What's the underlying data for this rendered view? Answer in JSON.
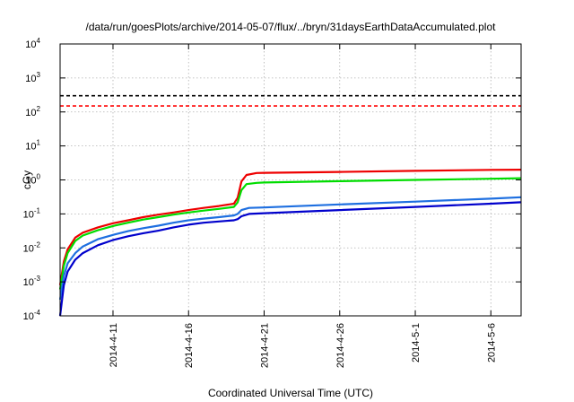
{
  "chart_data": {
    "type": "line",
    "title": "/data/run/goesPlots/archive/2014-05-07/flux/../bryn/31daysEarthDataAccumulated.plot",
    "xlabel": "Coordinated Universal Time (UTC)",
    "ylabel": "cGy",
    "yscale": "log",
    "ylim": [
      0.0001,
      10000
    ],
    "y_ticks": [
      {
        "value": 0.0001,
        "base": "10",
        "exp": "-4"
      },
      {
        "value": 0.001,
        "base": "10",
        "exp": "-3"
      },
      {
        "value": 0.01,
        "base": "10",
        "exp": "-2"
      },
      {
        "value": 0.1,
        "base": "10",
        "exp": "-1"
      },
      {
        "value": 1,
        "base": "10",
        "exp": "0"
      },
      {
        "value": 10,
        "base": "10",
        "exp": "1"
      },
      {
        "value": 100,
        "base": "10",
        "exp": "2"
      },
      {
        "value": 1000,
        "base": "10",
        "exp": "3"
      },
      {
        "value": 10000,
        "base": "10",
        "exp": "4"
      }
    ],
    "xlim": [
      "2014-04-07T12:00",
      "2014-05-08T00:00"
    ],
    "x_ticks": [
      {
        "value": "2014-04-11T00:00",
        "label": "2014-4-11"
      },
      {
        "value": "2014-04-16T00:00",
        "label": "2014-4-16"
      },
      {
        "value": "2014-04-21T00:00",
        "label": "2014-4-21"
      },
      {
        "value": "2014-04-26T00:00",
        "label": "2014-4-26"
      },
      {
        "value": "2014-05-01T00:00",
        "label": "2014-5-1"
      },
      {
        "value": "2014-05-06T00:00",
        "label": "2014-5-6"
      }
    ],
    "grid": true,
    "reference_lines": [
      {
        "y": 300,
        "color": "#000000",
        "style": "dashed"
      },
      {
        "y": 150,
        "color": "#ff0000",
        "style": "dashed"
      }
    ],
    "series": [
      {
        "color": "#ee0000",
        "points": [
          [
            "2014-04-07T12:00",
            0.0008
          ],
          [
            "2014-04-07T18:00",
            0.004
          ],
          [
            "2014-04-08T00:00",
            0.009
          ],
          [
            "2014-04-08T12:00",
            0.02
          ],
          [
            "2014-04-09T00:00",
            0.028
          ],
          [
            "2014-04-10T00:00",
            0.04
          ],
          [
            "2014-04-11T00:00",
            0.053
          ],
          [
            "2014-04-12T00:00",
            0.065
          ],
          [
            "2014-04-13T00:00",
            0.08
          ],
          [
            "2014-04-14T00:00",
            0.095
          ],
          [
            "2014-04-15T00:00",
            0.11
          ],
          [
            "2014-04-16T00:00",
            0.13
          ],
          [
            "2014-04-17T00:00",
            0.15
          ],
          [
            "2014-04-18T00:00",
            0.17
          ],
          [
            "2014-04-19T00:00",
            0.2
          ],
          [
            "2014-04-19T06:00",
            0.3
          ],
          [
            "2014-04-19T12:00",
            0.9
          ],
          [
            "2014-04-19T20:00",
            1.4
          ],
          [
            "2014-04-20T12:00",
            1.6
          ],
          [
            "2014-04-21T00:00",
            1.62
          ],
          [
            "2014-04-26T00:00",
            1.72
          ],
          [
            "2014-05-01T00:00",
            1.85
          ],
          [
            "2014-05-06T00:00",
            1.97
          ],
          [
            "2014-05-08T00:00",
            2.0
          ]
        ]
      },
      {
        "color": "#00dd00",
        "points": [
          [
            "2014-04-07T12:00",
            0.0006
          ],
          [
            "2014-04-07T18:00",
            0.003
          ],
          [
            "2014-04-08T00:00",
            0.007
          ],
          [
            "2014-04-08T12:00",
            0.016
          ],
          [
            "2014-04-09T00:00",
            0.023
          ],
          [
            "2014-04-10T00:00",
            0.033
          ],
          [
            "2014-04-11T00:00",
            0.044
          ],
          [
            "2014-04-12T00:00",
            0.055
          ],
          [
            "2014-04-13T00:00",
            0.068
          ],
          [
            "2014-04-14T00:00",
            0.08
          ],
          [
            "2014-04-15T00:00",
            0.095
          ],
          [
            "2014-04-16T00:00",
            0.11
          ],
          [
            "2014-04-17T00:00",
            0.125
          ],
          [
            "2014-04-18T00:00",
            0.14
          ],
          [
            "2014-04-19T00:00",
            0.16
          ],
          [
            "2014-04-19T06:00",
            0.22
          ],
          [
            "2014-04-19T12:00",
            0.5
          ],
          [
            "2014-04-19T20:00",
            0.75
          ],
          [
            "2014-04-20T12:00",
            0.82
          ],
          [
            "2014-04-21T00:00",
            0.84
          ],
          [
            "2014-04-26T00:00",
            0.92
          ],
          [
            "2014-05-01T00:00",
            1.0
          ],
          [
            "2014-05-06T00:00",
            1.08
          ],
          [
            "2014-05-08T00:00",
            1.12
          ]
        ]
      },
      {
        "color": "#1e6fe0",
        "points": [
          [
            "2014-04-07T12:00",
            0.0003
          ],
          [
            "2014-04-07T18:00",
            0.0015
          ],
          [
            "2014-04-08T00:00",
            0.0035
          ],
          [
            "2014-04-08T12:00",
            0.007
          ],
          [
            "2014-04-09T00:00",
            0.011
          ],
          [
            "2014-04-10T00:00",
            0.018
          ],
          [
            "2014-04-11T00:00",
            0.024
          ],
          [
            "2014-04-12T00:00",
            0.031
          ],
          [
            "2014-04-13T00:00",
            0.038
          ],
          [
            "2014-04-14T00:00",
            0.045
          ],
          [
            "2014-04-15T00:00",
            0.055
          ],
          [
            "2014-04-16T00:00",
            0.065
          ],
          [
            "2014-04-17T00:00",
            0.073
          ],
          [
            "2014-04-18T00:00",
            0.08
          ],
          [
            "2014-04-19T00:00",
            0.09
          ],
          [
            "2014-04-19T06:00",
            0.1
          ],
          [
            "2014-04-19T12:00",
            0.13
          ],
          [
            "2014-04-20T00:00",
            0.15
          ],
          [
            "2014-04-21T00:00",
            0.155
          ],
          [
            "2014-04-26T00:00",
            0.19
          ],
          [
            "2014-05-01T00:00",
            0.23
          ],
          [
            "2014-05-06T00:00",
            0.28
          ],
          [
            "2014-05-08T00:00",
            0.31
          ]
        ]
      },
      {
        "color": "#0000cc",
        "points": [
          [
            "2014-04-07T12:00",
            0.0001
          ],
          [
            "2014-04-07T18:00",
            0.0008
          ],
          [
            "2014-04-08T00:00",
            0.002
          ],
          [
            "2014-04-08T12:00",
            0.0045
          ],
          [
            "2014-04-09T00:00",
            0.007
          ],
          [
            "2014-04-10T00:00",
            0.012
          ],
          [
            "2014-04-11T00:00",
            0.017
          ],
          [
            "2014-04-12T00:00",
            0.022
          ],
          [
            "2014-04-13T00:00",
            0.027
          ],
          [
            "2014-04-14T00:00",
            0.032
          ],
          [
            "2014-04-15T00:00",
            0.04
          ],
          [
            "2014-04-16T00:00",
            0.048
          ],
          [
            "2014-04-17T00:00",
            0.055
          ],
          [
            "2014-04-18T00:00",
            0.06
          ],
          [
            "2014-04-19T00:00",
            0.065
          ],
          [
            "2014-04-19T06:00",
            0.07
          ],
          [
            "2014-04-19T12:00",
            0.085
          ],
          [
            "2014-04-20T00:00",
            0.1
          ],
          [
            "2014-04-21T00:00",
            0.105
          ],
          [
            "2014-04-26T00:00",
            0.13
          ],
          [
            "2014-05-01T00:00",
            0.16
          ],
          [
            "2014-05-06T00:00",
            0.2
          ],
          [
            "2014-05-08T00:00",
            0.22
          ]
        ]
      }
    ]
  }
}
